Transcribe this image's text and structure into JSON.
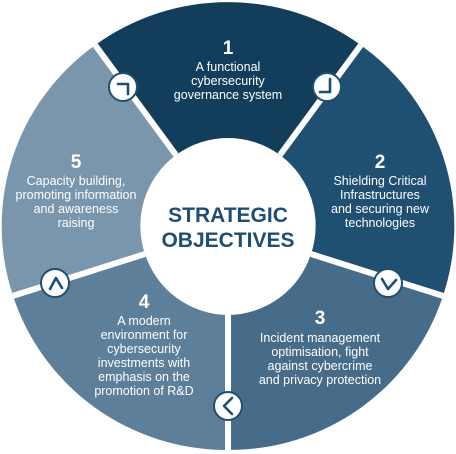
{
  "center": {
    "line1": "STRATEGIC",
    "line2": "OBJECTIVES"
  },
  "segments": [
    {
      "number": "1",
      "lines": [
        "A functional",
        "cybersecurity",
        "governance system"
      ],
      "color": "#123d5b"
    },
    {
      "number": "2",
      "lines": [
        "Shielding Critical",
        "Infrastructures",
        "and securing new",
        "technologies"
      ],
      "color": "#1f4f71"
    },
    {
      "number": "3",
      "lines": [
        "Incident management",
        "optimisation, fight",
        "against cybercrime",
        "and privacy protection"
      ],
      "color": "#476c89"
    },
    {
      "number": "4",
      "lines": [
        "A modern",
        "environment for",
        "cybersecurity",
        "investments with",
        "emphasis on the",
        "promotion of R&D"
      ],
      "color": "#5e7f99"
    },
    {
      "number": "5",
      "lines": [
        "Capacity building,",
        "promoting information",
        "and awareness",
        "raising"
      ],
      "color": "#7a96ad"
    }
  ],
  "colors": {
    "separator": "#ffffff",
    "center_fill": "#ffffff",
    "center_text": "#1e4f73",
    "connector_fill": "#ffffff",
    "connector_stroke": "#1e4f73"
  },
  "icons": {
    "connector": "chevron-icon"
  }
}
